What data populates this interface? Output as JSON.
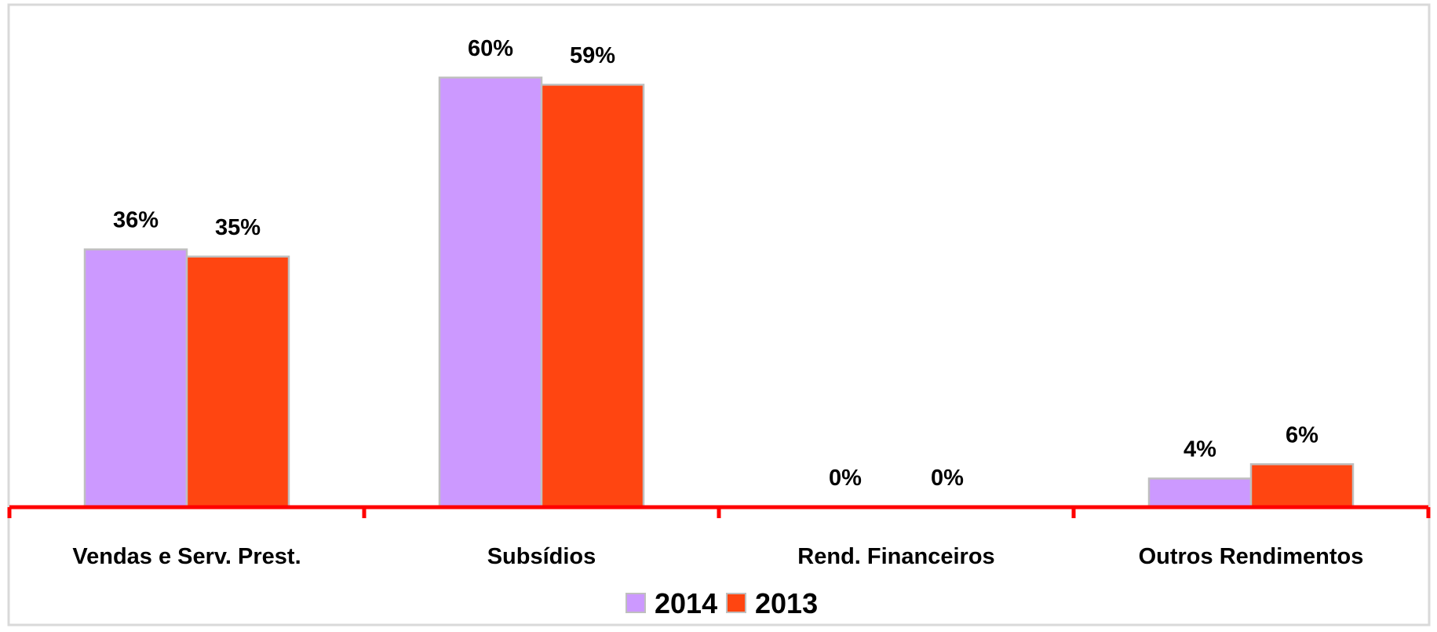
{
  "chart_data": {
    "type": "bar",
    "categories": [
      "Vendas e Serv. Prest.",
      "Subsídios",
      "Rend. Financeiros",
      "Outros Rendimentos"
    ],
    "series": [
      {
        "name": "2014",
        "values": [
          36,
          60,
          0,
          4
        ],
        "labels": [
          "36%",
          "60%",
          "0%",
          "4%"
        ],
        "color": "#CC99FF"
      },
      {
        "name": "2013",
        "values": [
          35,
          59,
          0,
          6
        ],
        "labels": [
          "35%",
          "59%",
          "0%",
          "6%"
        ],
        "color": "#FF4511"
      }
    ],
    "unit": "%",
    "ylim": [
      0,
      70
    ],
    "grid": false,
    "legend_position": "bottom",
    "axis_color": "#FF0000",
    "bar_border_color": "#BFBFBF",
    "frame_color": "#D9D9D9"
  }
}
